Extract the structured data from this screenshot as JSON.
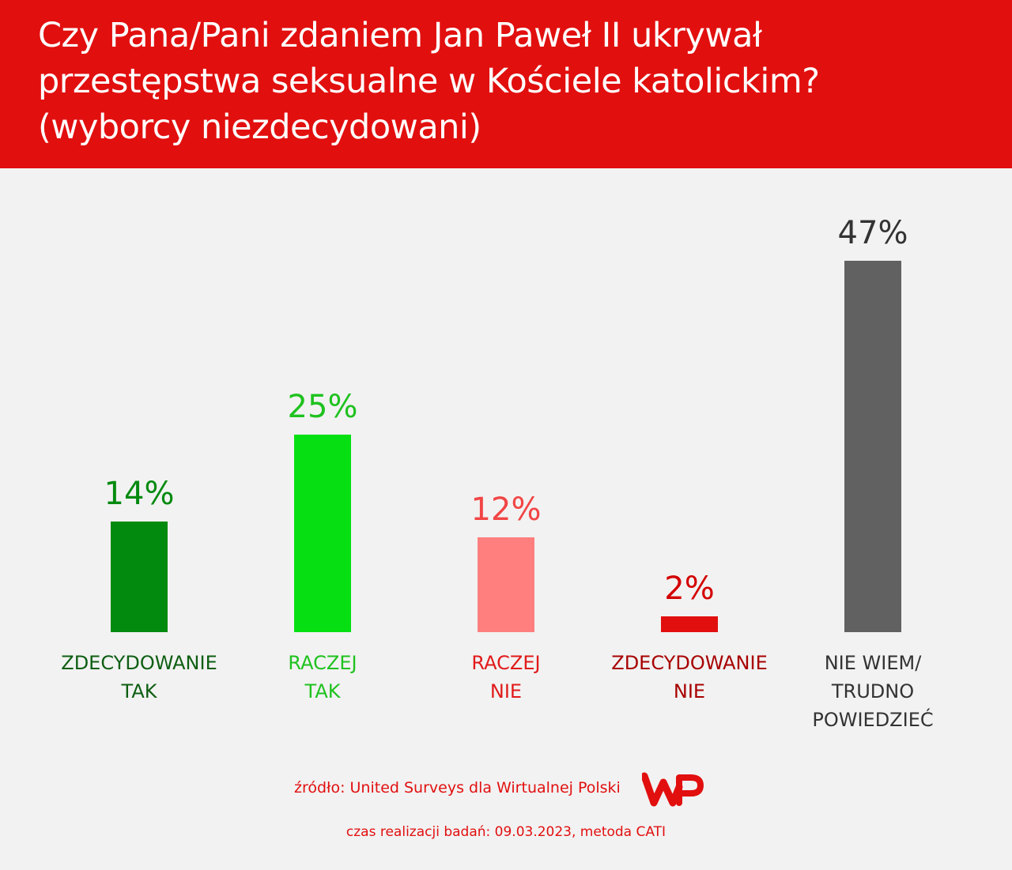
{
  "header": {
    "title_lines": [
      "Czy Pana/Pani zdaniem Jan Paweł II ukrywał",
      "przestępstwa seksualne w Kościele katolickim?",
      "(wyborcy niezdecydowani)"
    ]
  },
  "colors": {
    "header_bg": "#e20f0f",
    "background": "#f2f2f2"
  },
  "chart_data": {
    "type": "bar",
    "title": "Czy Pana/Pani zdaniem Jan Paweł II ukrywał przestępstwa seksualne w Kościele katolickim? (wyborcy niezdecydowani)",
    "categories": [
      [
        "ZDECYDOWANIE",
        "TAK"
      ],
      [
        "RACZEJ",
        "TAK"
      ],
      [
        "RACZEJ",
        "NIE"
      ],
      [
        "ZDECYDOWANIE",
        "NIE"
      ],
      [
        "NIE WIEM/",
        "TRUDNO",
        "POWIEDZIEĆ"
      ]
    ],
    "values": [
      14,
      25,
      12,
      2,
      47
    ],
    "value_labels": [
      "14%",
      "25%",
      "12%",
      "2%",
      "47%"
    ],
    "unit": "%",
    "bar_colors": [
      "#028a0f",
      "#06e013",
      "#ff7f7f",
      "#e20f0f",
      "#616161"
    ],
    "value_label_colors": [
      "#028a0f",
      "#1fc21f",
      "#f24545",
      "#d40000",
      "#333333"
    ],
    "category_label_colors": [
      "#0d5e12",
      "#1fc21f",
      "#e21a1a",
      "#a80000",
      "#333333"
    ],
    "ylim": [
      0,
      47
    ],
    "grid": false,
    "legend": "none"
  },
  "footer": {
    "source": "źródło: United Surveys dla Wirtualnej Polski",
    "logo_text": "WP",
    "date": "czas realizacji badań: 09.03.2023, metoda CATI"
  }
}
